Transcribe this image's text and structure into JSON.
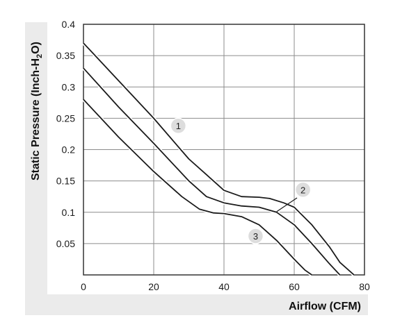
{
  "chart_data": {
    "type": "line",
    "xlabel": "Airflow (CFM)",
    "ylabel_main": "Static Pressure (Inch-H",
    "ylabel_sub": "2",
    "ylabel_end": "O)",
    "xlim": [
      0,
      80
    ],
    "ylim": [
      0,
      0.4
    ],
    "x_ticks": [
      "0",
      "20",
      "40",
      "60",
      "80"
    ],
    "y_ticks": [
      "0.05",
      "0.1",
      "0.15",
      "0.2",
      "0.25",
      "0.3",
      "0.35",
      "0.4"
    ],
    "grid": true,
    "series": [
      {
        "name": "1",
        "points": [
          [
            0,
            0.37
          ],
          [
            10,
            0.31
          ],
          [
            20,
            0.25
          ],
          [
            30,
            0.185
          ],
          [
            35,
            0.16
          ],
          [
            40,
            0.135
          ],
          [
            45,
            0.125
          ],
          [
            50,
            0.124
          ],
          [
            53,
            0.122
          ],
          [
            57,
            0.115
          ],
          [
            60,
            0.108
          ],
          [
            65,
            0.08
          ],
          [
            70,
            0.045
          ],
          [
            73,
            0.02
          ],
          [
            77,
            0.0
          ]
        ]
      },
      {
        "name": "2",
        "points": [
          [
            0,
            0.33
          ],
          [
            10,
            0.268
          ],
          [
            20,
            0.21
          ],
          [
            30,
            0.15
          ],
          [
            35,
            0.125
          ],
          [
            40,
            0.115
          ],
          [
            45,
            0.11
          ],
          [
            50,
            0.108
          ],
          [
            55,
            0.1
          ],
          [
            60,
            0.08
          ],
          [
            65,
            0.05
          ],
          [
            70,
            0.018
          ],
          [
            73,
            0.0
          ]
        ]
      },
      {
        "name": "3",
        "points": [
          [
            0,
            0.28
          ],
          [
            10,
            0.22
          ],
          [
            20,
            0.165
          ],
          [
            28,
            0.125
          ],
          [
            33,
            0.105
          ],
          [
            37,
            0.099
          ],
          [
            40,
            0.098
          ],
          [
            45,
            0.093
          ],
          [
            50,
            0.08
          ],
          [
            55,
            0.055
          ],
          [
            60,
            0.025
          ],
          [
            63,
            0.008
          ],
          [
            65,
            0.0
          ]
        ]
      }
    ],
    "labels": [
      {
        "text": "1",
        "x": 27,
        "y": 0.238
      },
      {
        "text": "2",
        "x": 62.5,
        "y": 0.136
      },
      {
        "text": "3",
        "x": 49,
        "y": 0.062
      }
    ]
  }
}
